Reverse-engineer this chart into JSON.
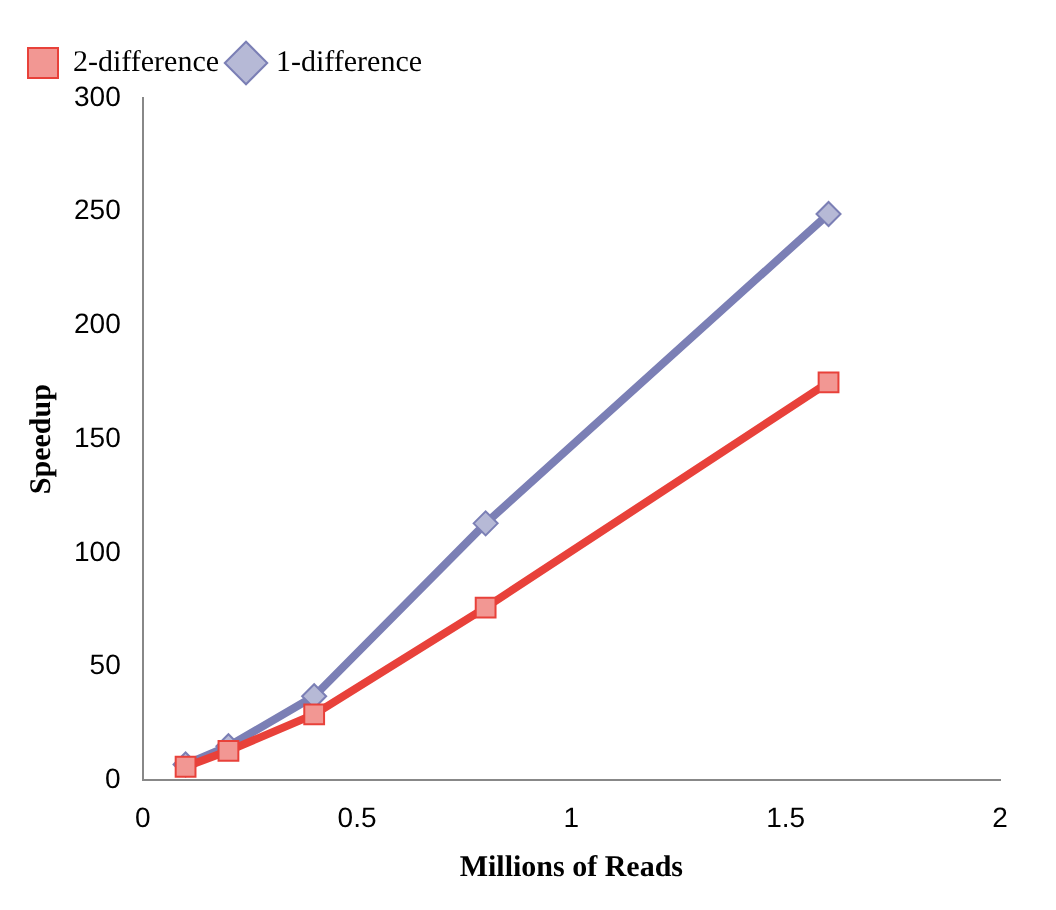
{
  "chart_data": {
    "type": "line",
    "xlabel": "Millions of Reads",
    "ylabel": "Speedup",
    "xlim": [
      0,
      2
    ],
    "xticks": [
      0,
      0.5,
      1,
      1.5,
      2
    ],
    "ylim": [
      0,
      300
    ],
    "yticks": [
      0,
      50,
      100,
      150,
      200,
      250,
      300
    ],
    "grid": false,
    "legend": "top left",
    "series": [
      {
        "name": "1-difference",
        "color": "#7b7fb5",
        "marker": "diamond",
        "x": [
          0.1,
          0.2,
          0.4,
          0.8,
          1.6
        ],
        "values": [
          7,
          15,
          37,
          113,
          249
        ]
      },
      {
        "name": "2-difference",
        "color": "#e8413a",
        "marker": "square",
        "x": [
          0.1,
          0.2,
          0.4,
          0.8,
          1.6
        ],
        "values": [
          6,
          13,
          29,
          76,
          175
        ]
      }
    ]
  }
}
